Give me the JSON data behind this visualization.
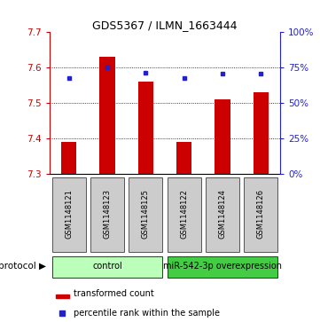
{
  "title": "GDS5367 / ILMN_1663444",
  "samples": [
    "GSM1148121",
    "GSM1148123",
    "GSM1148125",
    "GSM1148122",
    "GSM1148124",
    "GSM1148126"
  ],
  "bar_values": [
    7.39,
    7.63,
    7.56,
    7.39,
    7.51,
    7.53
  ],
  "dot_values": [
    7.57,
    7.6,
    7.585,
    7.57,
    7.582,
    7.582
  ],
  "ylim": [
    7.3,
    7.7
  ],
  "yticks_left": [
    7.3,
    7.4,
    7.5,
    7.6,
    7.7
  ],
  "yticks_right": [
    0,
    25,
    50,
    75,
    100
  ],
  "bar_color": "#cc0000",
  "dot_color": "#2222cc",
  "group1_indices": [
    0,
    1,
    2
  ],
  "group2_indices": [
    3,
    4,
    5
  ],
  "group1_label": "control",
  "group2_label": "miR-542-3p overexpression",
  "group1_color": "#bbffbb",
  "group2_color": "#44cc44",
  "legend_bar_label": "transformed count",
  "legend_dot_label": "percentile rank within the sample",
  "bg_color": "#ffffff",
  "sample_box_color": "#cccccc",
  "title_fontsize": 9,
  "tick_fontsize": 7.5,
  "sample_fontsize": 6,
  "group_fontsize": 7,
  "legend_fontsize": 7
}
